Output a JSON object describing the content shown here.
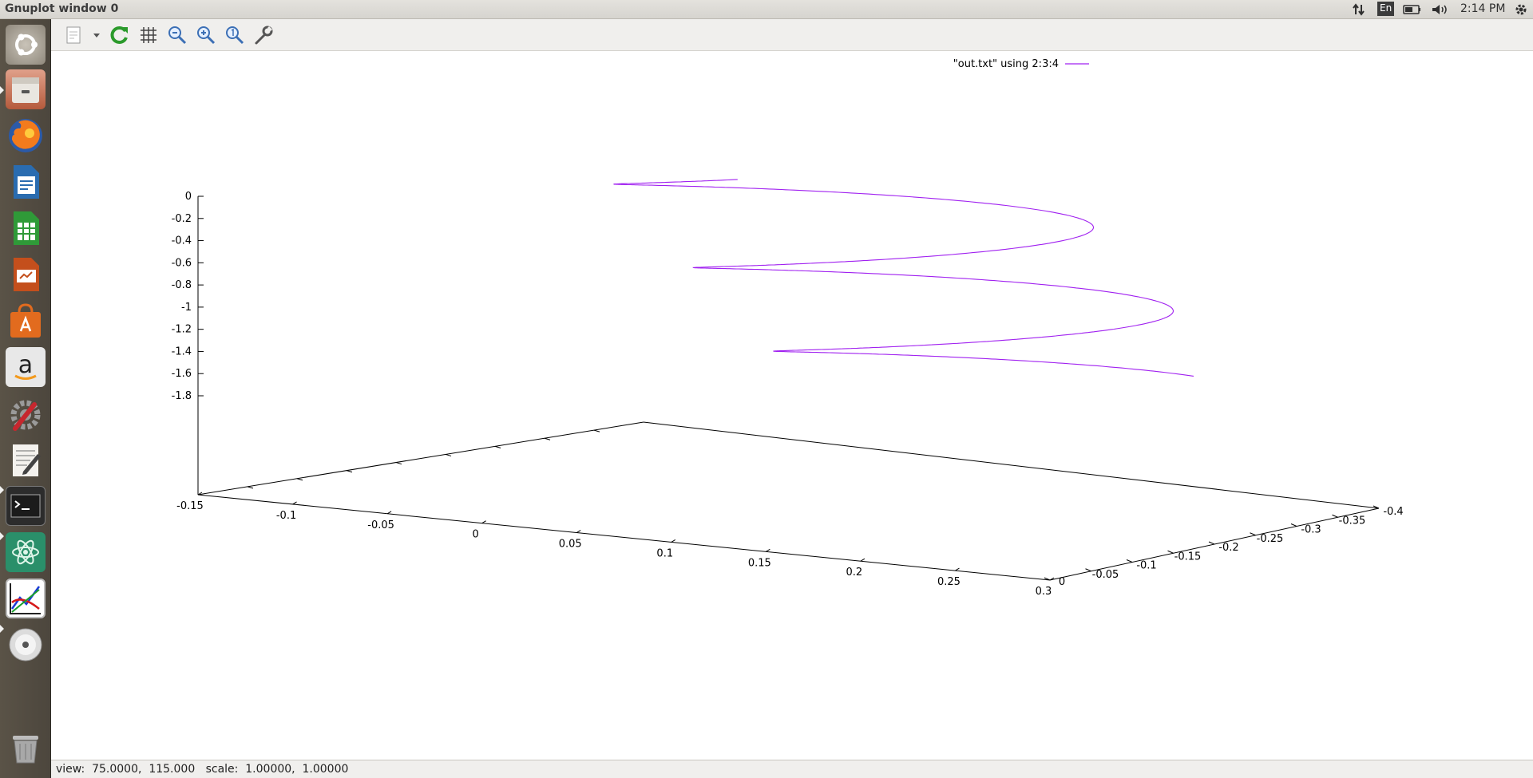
{
  "window": {
    "title": "Gnuplot window 0"
  },
  "tray": {
    "keyboard_layout": "En",
    "clock": "2:14 PM"
  },
  "launcher": {
    "items": [
      {
        "name": "dash-home",
        "icon": "ubuntu-logo-icon"
      },
      {
        "name": "files",
        "icon": "file-cabinet-icon"
      },
      {
        "name": "firefox",
        "icon": "firefox-icon"
      },
      {
        "name": "writer",
        "icon": "document-icon"
      },
      {
        "name": "calc",
        "icon": "spreadsheet-icon"
      },
      {
        "name": "impress",
        "icon": "presentation-icon"
      },
      {
        "name": "software-center",
        "icon": "shopping-bag-icon"
      },
      {
        "name": "amazon",
        "icon": "amazon-icon"
      },
      {
        "name": "system-settings",
        "icon": "gear-wrench-icon"
      },
      {
        "name": "text-editor",
        "icon": "pencil-notepad-icon"
      },
      {
        "name": "terminal",
        "icon": "terminal-icon"
      },
      {
        "name": "atom",
        "icon": "atom-icon"
      },
      {
        "name": "gnuplot",
        "icon": "graph-icon"
      },
      {
        "name": "dvd",
        "icon": "disc-icon"
      },
      {
        "name": "trash",
        "icon": "trash-icon"
      }
    ]
  },
  "toolbar": {
    "items": [
      "copy-clipboard-icon",
      "dropdown-arrow-icon",
      "replot-icon",
      "grid-icon",
      "zoom-previous-icon",
      "zoom-next-icon",
      "unzoom-icon",
      "settings-wrench-icon"
    ]
  },
  "status": {
    "text": "view:  75.0000,  115.000   scale:  1.00000,  1.00000"
  },
  "chart_data": {
    "type": "line",
    "title": "",
    "plot_style": "3d-splot",
    "view": {
      "rot_x": 75,
      "rot_z": 115,
      "scale": 1,
      "scale_z": 1
    },
    "legend": {
      "placement": "top-right",
      "entries": [
        {
          "label": "\"out.txt\" using 2:3:4",
          "color": "#a020f0"
        }
      ]
    },
    "axes": {
      "x": {
        "range": [
          -0.15,
          0.3
        ],
        "ticks": [
          "-0.15",
          "-0.1",
          "-0.05",
          "0",
          "0.05",
          "0.1",
          "0.15",
          "0.2",
          "0.25",
          "0.3"
        ]
      },
      "y": {
        "range": [
          -0.4,
          0
        ],
        "ticks": [
          "0",
          "-0.05",
          "-0.1",
          "-0.15",
          "-0.2",
          "-0.25",
          "-0.3",
          "-0.35",
          "-0.4"
        ]
      },
      "z": {
        "range": [
          -2,
          0
        ],
        "ticks": [
          "0",
          "-0.2",
          "-0.4",
          "-0.6",
          "-0.8",
          "-1",
          "-1.2",
          "-1.4",
          "-1.6",
          "-1.8"
        ]
      }
    },
    "series": [
      {
        "name": "\"out.txt\" using 2:3:4",
        "color": "#a020f0",
        "shape": "helix",
        "center_x": 0.075,
        "center_y": -0.2,
        "radius": 0.15,
        "turns": 3,
        "z_start": -0.05,
        "z_end": -1.9
      }
    ]
  }
}
